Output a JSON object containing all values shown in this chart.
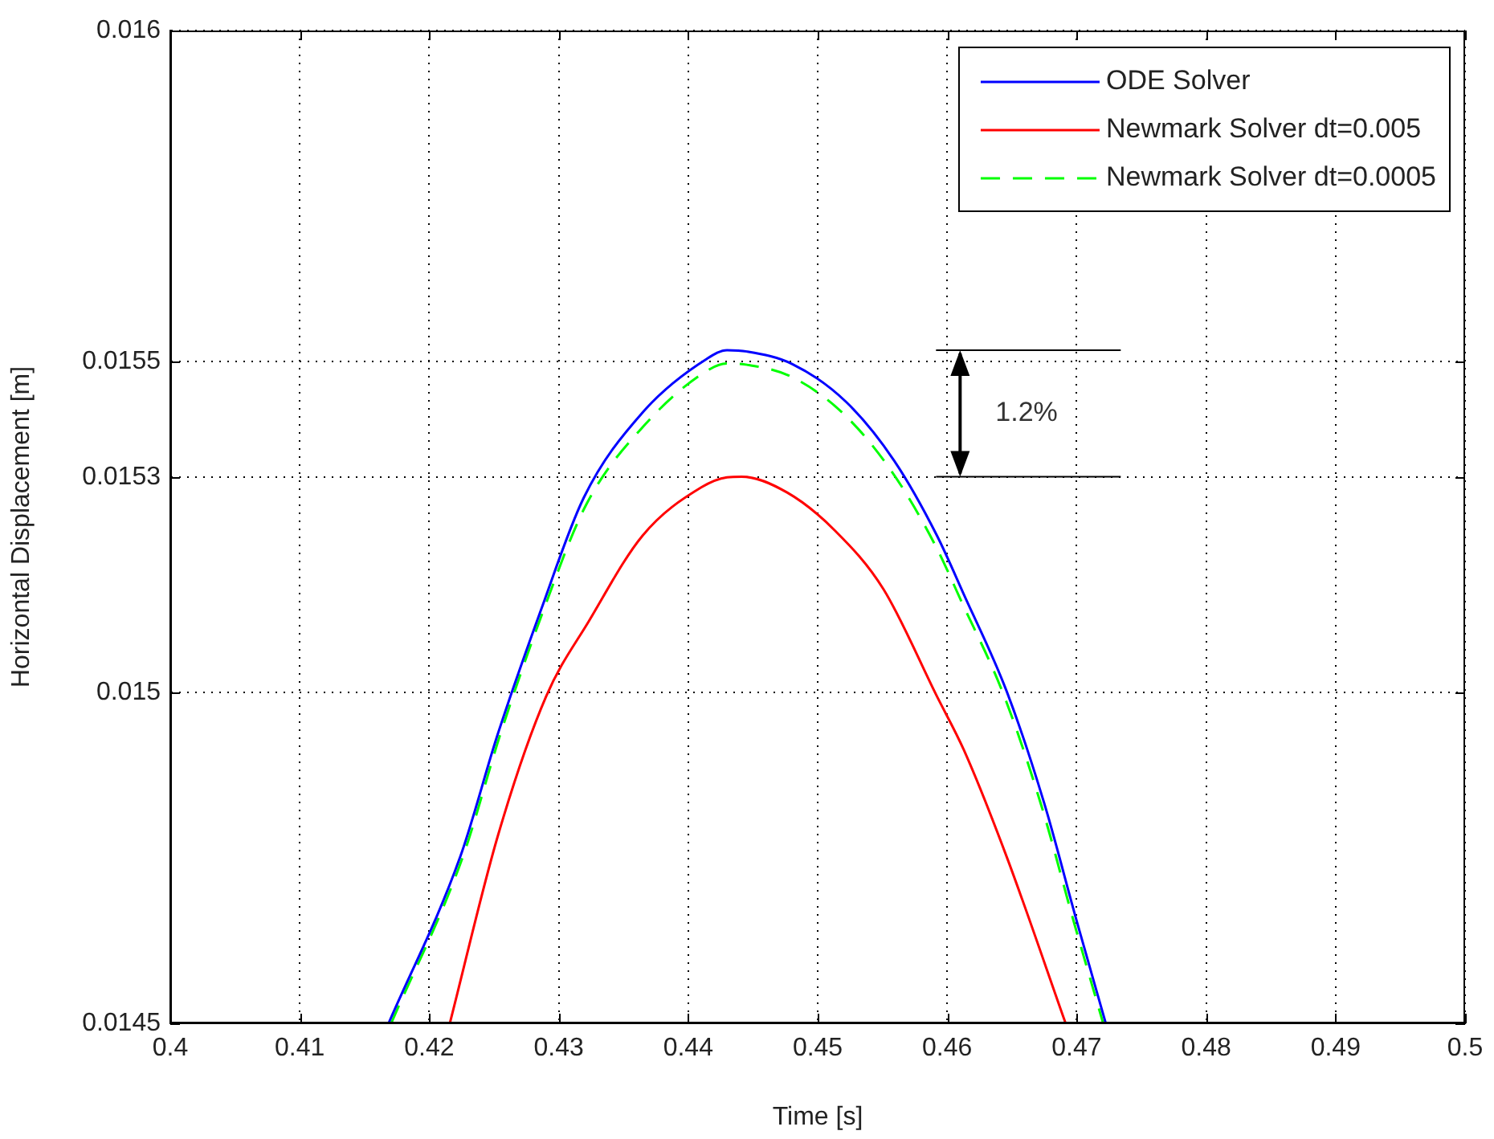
{
  "chart_data": {
    "type": "line",
    "xlabel": "Time [s]",
    "ylabel": "Horizontal Displacement [m]",
    "xlim": [
      0.4,
      0.5
    ],
    "xticks": [
      0.4,
      0.41,
      0.42,
      0.43,
      0.44,
      0.45,
      0.46,
      0.47,
      0.48,
      0.49,
      0.5
    ],
    "ylim": [
      0.0145,
      0.016
    ],
    "yticks": [
      0.0145,
      0.015,
      {
        "value": 0.015325,
        "label": "0.0153"
      },
      0.0155,
      0.016
    ],
    "grid": true,
    "legend": "top right",
    "marker": "none",
    "annotations": [
      "1.2%"
    ],
    "series": [
      {
        "name": "ODE Solver",
        "color": "#0000ff",
        "line_style": "solid",
        "x": [
          0.41686,
          0.4224,
          0.42531,
          0.42862,
          0.43193,
          0.43648,
          0.44144,
          0.443,
          0.44454,
          0.44805,
          0.45219,
          0.45591,
          0.45921,
          0.46129,
          0.46459,
          0.46749,
          0.47,
          0.47225
        ],
        "values": [
          0.0145,
          0.014752,
          0.014938,
          0.015124,
          0.015294,
          0.015423,
          0.015504,
          0.015517,
          0.015515,
          0.015496,
          0.015439,
          0.01535,
          0.015237,
          0.015148,
          0.015002,
          0.014833,
          0.014655,
          0.0145
        ]
      },
      {
        "name": "Newmark Solver dt=0.005",
        "color": "#ff0000",
        "line_style": "solid",
        "x": [
          0.42159,
          0.42531,
          0.42903,
          0.43234,
          0.43648,
          0.44103,
          0.443,
          0.44413,
          0.44764,
          0.45136,
          0.45508,
          0.45921,
          0.46129,
          0.46459,
          0.46915
        ],
        "values": [
          0.0145,
          0.014784,
          0.014994,
          0.015108,
          0.015237,
          0.01531,
          0.015325,
          0.015326,
          0.015302,
          0.015244,
          0.015156,
          0.014994,
          0.014913,
          0.014752,
          0.0145
        ]
      },
      {
        "name": "Newmark Solver dt=0.0005",
        "color": "#00ff00",
        "line_style": "dashed",
        "x": [
          0.41706,
          0.4226,
          0.42551,
          0.42882,
          0.43213,
          0.43668,
          0.44154,
          0.443,
          0.44454,
          0.44795,
          0.45199,
          0.45571,
          0.45901,
          0.46109,
          0.46439,
          0.46729,
          0.4698,
          0.47205
        ],
        "values": [
          0.0145,
          0.014752,
          0.014938,
          0.015124,
          0.015284,
          0.015405,
          0.015487,
          0.015497,
          0.015495,
          0.015477,
          0.015421,
          0.015334,
          0.015225,
          0.015138,
          0.014995,
          0.014828,
          0.014652,
          0.0145
        ]
      }
    ]
  }
}
